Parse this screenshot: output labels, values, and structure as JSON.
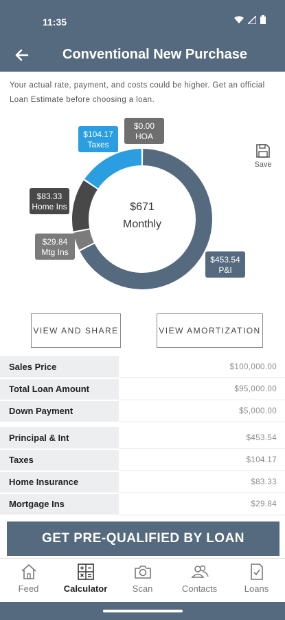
{
  "status_bar": {
    "time": "11:35",
    "icons": [
      "wifi-icon",
      "signal-icon",
      "battery-icon"
    ]
  },
  "header": {
    "title": "Conventional New Purchase",
    "back_icon": "arrow-left-icon"
  },
  "disclaimer": "Your actual rate, payment, and costs could be higher. Get an official Loan Estimate before choosing a loan.",
  "save": {
    "label": "Save",
    "icon": "floppy-disk-icon"
  },
  "chart_data": {
    "type": "pie",
    "variant": "donut",
    "center_value": "$671",
    "center_label": "Monthly",
    "slices": [
      {
        "label": "P&I",
        "amount": "$453.54",
        "value": 453.54,
        "color": "#556a7e"
      },
      {
        "label": "Mtg Ins",
        "amount": "$29.84",
        "value": 29.84,
        "color": "#7b7b7b"
      },
      {
        "label": "Home Ins",
        "amount": "$83.33",
        "value": 83.33,
        "color": "#484848"
      },
      {
        "label": "Taxes",
        "amount": "$104.17",
        "value": 104.17,
        "color": "#2a9ee0"
      },
      {
        "label": "HOA",
        "amount": "$0.00",
        "value": 0,
        "color": "#6f6f6f"
      }
    ]
  },
  "buttons": {
    "view_share": "VIEW AND SHARE",
    "view_amortization": "VIEW AMORTIZATION"
  },
  "loan_summary": [
    {
      "label": "Sales Price",
      "value": "$100,000.00"
    },
    {
      "label": "Total Loan Amount",
      "value": "$95,000.00"
    },
    {
      "label": "Down Payment",
      "value": "$5,000.00"
    }
  ],
  "payment_summary": [
    {
      "label": "Principal & Int",
      "value": "$453.54"
    },
    {
      "label": "Taxes",
      "value": "$104.17"
    },
    {
      "label": "Home Insurance",
      "value": "$83.33"
    },
    {
      "label": "Mortgage Ins",
      "value": "$29.84"
    }
  ],
  "cta": "GET PRE-QUALIFIED BY LOAN",
  "nav": [
    {
      "label": "Feed",
      "icon": "home-icon",
      "active": false
    },
    {
      "label": "Calculator",
      "icon": "calculator-icon",
      "active": true
    },
    {
      "label": "Scan",
      "icon": "camera-icon",
      "active": false
    },
    {
      "label": "Contacts",
      "icon": "contacts-icon",
      "active": false
    },
    {
      "label": "Loans",
      "icon": "document-check-icon",
      "active": false
    }
  ],
  "colors": {
    "brand": "#556a7e",
    "accent": "#2a9ee0"
  }
}
